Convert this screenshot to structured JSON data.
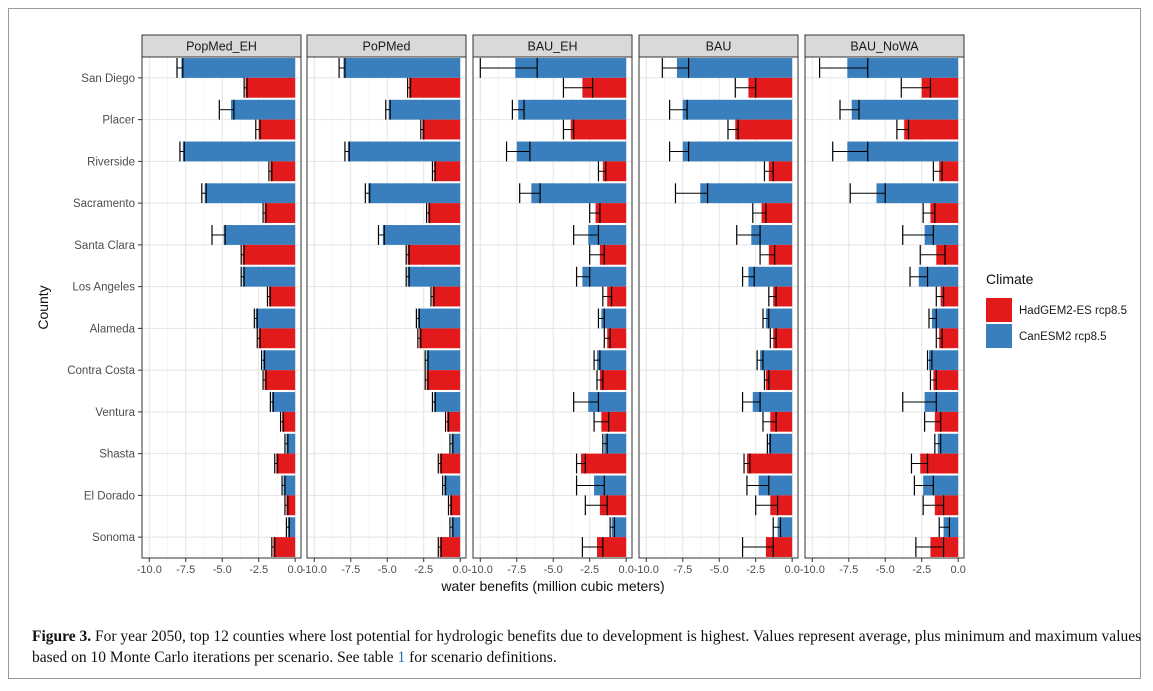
{
  "chart_data": {
    "type": "bar",
    "orientation": "horizontal",
    "facet_by": "scenario",
    "panels": [
      "PopMed_EH",
      "PoPMed",
      "BAU_EH",
      "BAU",
      "BAU_NoWA"
    ],
    "categories": [
      "San Diego",
      "Placer",
      "Riverside",
      "Sacramento",
      "Santa Clara",
      "Los Angeles",
      "Alameda",
      "Contra Costa",
      "Ventura",
      "Shasta",
      "El Dorado",
      "Sonoma"
    ],
    "xlabel": "water benefits (million cubic meters)",
    "ylabel": "County",
    "xlim": [
      -10.5,
      0.4
    ],
    "xticks": [
      -10.0,
      -7.5,
      -5.0,
      -2.5,
      0.0
    ],
    "xtick_labels": [
      "-10.0",
      "-7.5",
      "-5.0",
      "-2.5",
      "0.0"
    ],
    "grid": true,
    "legend": {
      "title": "Climate",
      "position": "right",
      "entries": [
        "HadGEM2-ES rcp8.5",
        "CanESM2 rcp8.5"
      ]
    },
    "series": [
      {
        "name": "CanESM2 rcp8.5",
        "color": "#3a7fbd",
        "values": [
          [
            -7.8,
            -4.4,
            -7.7,
            -6.2,
            -4.9,
            -3.6,
            -2.7,
            -2.2,
            -1.6,
            -0.6,
            -0.8,
            -0.5
          ],
          [
            -8.0,
            -4.9,
            -7.7,
            -6.3,
            -5.3,
            -3.6,
            -2.9,
            -2.3,
            -1.8,
            -0.6,
            -1.1,
            -0.6
          ],
          [
            -7.6,
            -7.4,
            -7.5,
            -6.5,
            -2.6,
            -3.0,
            -1.7,
            -2.0,
            -2.6,
            -1.5,
            -2.2,
            -1.0
          ],
          [
            -7.9,
            -7.5,
            -7.5,
            -6.3,
            -2.8,
            -3.0,
            -1.8,
            -2.2,
            -2.7,
            -1.6,
            -2.3,
            -1.0
          ],
          [
            -7.6,
            -7.3,
            -7.6,
            -5.6,
            -2.3,
            -2.7,
            -1.8,
            -2.0,
            -2.3,
            -1.4,
            -2.4,
            -1.0
          ]
        ],
        "min": [
          [
            -8.1,
            -5.2,
            -7.9,
            -6.4,
            -5.7,
            -3.7,
            -2.8,
            -2.3,
            -1.7,
            -0.7,
            -0.9,
            -0.6
          ],
          [
            -8.3,
            -5.1,
            -7.9,
            -6.5,
            -5.6,
            -3.7,
            -3.0,
            -2.4,
            -1.9,
            -0.7,
            -1.2,
            -0.7
          ],
          [
            -10.0,
            -7.8,
            -8.2,
            -7.3,
            -3.6,
            -3.4,
            -1.9,
            -2.2,
            -3.6,
            -1.6,
            -3.4,
            -1.1
          ],
          [
            -8.9,
            -8.4,
            -8.4,
            -8.0,
            -3.8,
            -3.4,
            -2.0,
            -2.4,
            -3.4,
            -1.7,
            -3.1,
            -1.3
          ],
          [
            -9.5,
            -8.1,
            -8.6,
            -7.4,
            -3.8,
            -3.3,
            -2.0,
            -2.1,
            -3.8,
            -1.6,
            -3.0,
            -1.3
          ]
        ],
        "max": [
          [
            -7.7,
            -4.2,
            -7.6,
            -6.1,
            -4.8,
            -3.5,
            -2.6,
            -2.1,
            -1.5,
            -0.5,
            -0.7,
            -0.4
          ],
          [
            -7.9,
            -4.8,
            -7.6,
            -6.2,
            -5.2,
            -3.5,
            -2.8,
            -2.2,
            -1.7,
            -0.5,
            -1.0,
            -0.5
          ],
          [
            -6.1,
            -7.0,
            -6.6,
            -5.9,
            -1.9,
            -2.5,
            -1.5,
            -1.8,
            -1.9,
            -1.3,
            -1.5,
            -0.8
          ],
          [
            -7.1,
            -7.2,
            -7.1,
            -5.8,
            -2.2,
            -2.6,
            -1.6,
            -2.0,
            -2.2,
            -1.5,
            -1.6,
            -0.8
          ],
          [
            -6.2,
            -6.8,
            -6.2,
            -5.0,
            -1.7,
            -2.1,
            -1.5,
            -1.8,
            -1.5,
            -1.2,
            -1.7,
            -0.6
          ]
        ]
      },
      {
        "name": "HadGEM2-ES rcp8.5",
        "color": "#e31a1c",
        "values": [
          [
            -3.4,
            -2.5,
            -1.7,
            -2.1,
            -3.6,
            -1.8,
            -2.5,
            -2.1,
            -0.9,
            -1.3,
            -0.6,
            -1.5
          ],
          [
            -3.5,
            -2.6,
            -1.8,
            -2.2,
            -3.6,
            -1.9,
            -2.8,
            -2.3,
            -0.9,
            -1.4,
            -0.7,
            -1.4
          ],
          [
            -3.0,
            -3.8,
            -1.6,
            -2.1,
            -1.8,
            -1.3,
            -1.3,
            -1.8,
            -1.7,
            -3.1,
            -1.8,
            -2.0
          ],
          [
            -3.0,
            -3.9,
            -1.6,
            -2.1,
            -1.6,
            -1.3,
            -1.3,
            -1.8,
            -1.5,
            -3.1,
            -1.5,
            -1.8
          ],
          [
            -2.5,
            -3.7,
            -1.3,
            -1.9,
            -1.5,
            -1.2,
            -1.3,
            -1.7,
            -1.6,
            -2.6,
            -1.6,
            -1.9
          ]
        ],
        "min": [
          [
            -3.5,
            -2.7,
            -1.8,
            -2.2,
            -3.7,
            -1.9,
            -2.6,
            -2.2,
            -1.0,
            -1.4,
            -0.7,
            -1.6
          ],
          [
            -3.6,
            -2.7,
            -1.9,
            -2.3,
            -3.7,
            -2.0,
            -2.9,
            -2.4,
            -1.0,
            -1.5,
            -0.8,
            -1.5
          ],
          [
            -4.3,
            -4.3,
            -1.9,
            -2.5,
            -2.5,
            -1.6,
            -1.5,
            -2.0,
            -2.2,
            -3.4,
            -2.8,
            -3.0
          ],
          [
            -3.9,
            -4.4,
            -1.9,
            -2.7,
            -2.2,
            -1.6,
            -1.5,
            -1.9,
            -2.0,
            -3.3,
            -2.5,
            -3.4
          ],
          [
            -3.9,
            -4.2,
            -1.7,
            -2.4,
            -2.6,
            -1.5,
            -1.5,
            -1.9,
            -2.3,
            -3.2,
            -2.4,
            -2.9
          ]
        ],
        "max": [
          [
            -3.3,
            -2.4,
            -1.6,
            -2.0,
            -3.5,
            -1.7,
            -2.4,
            -2.0,
            -0.8,
            -1.2,
            -0.5,
            -1.4
          ],
          [
            -3.4,
            -2.5,
            -1.7,
            -2.1,
            -3.5,
            -1.8,
            -2.7,
            -2.2,
            -0.8,
            -1.3,
            -0.6,
            -1.3
          ],
          [
            -2.3,
            -3.6,
            -1.4,
            -1.8,
            -1.5,
            -1.0,
            -1.1,
            -1.6,
            -1.2,
            -2.8,
            -1.3,
            -1.6
          ],
          [
            -2.5,
            -3.7,
            -1.3,
            -1.8,
            -1.2,
            -1.1,
            -1.1,
            -1.6,
            -1.1,
            -2.9,
            -1.0,
            -1.3
          ],
          [
            -1.9,
            -3.4,
            -1.1,
            -1.6,
            -0.9,
            -1.0,
            -1.1,
            -1.5,
            -1.2,
            -2.1,
            -1.0,
            -1.0
          ]
        ]
      }
    ]
  },
  "caption": {
    "label": "Figure 3.",
    "text_before_ref": " For year 2050, top 12 counties where lost potential for hydrologic benefits due to development is highest. Values represent average, plus minimum and maximum values based on 10 Monte Carlo iterations per scenario. See table ",
    "ref": "1",
    "text_after_ref": " for scenario definitions."
  }
}
